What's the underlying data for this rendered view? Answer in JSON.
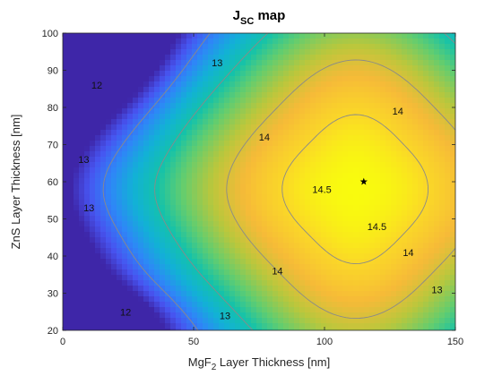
{
  "chart_data": {
    "type": "heatmap",
    "title": {
      "main": "J",
      "sub": "SC",
      "rest": " map"
    },
    "xlabel": {
      "pre": "MgF",
      "sub": "2",
      "post": " Layer Thickness [nm]"
    },
    "ylabel": "ZnS Layer Thickness [nm]",
    "xlim": [
      0,
      150
    ],
    "ylim": [
      20,
      100
    ],
    "x_ticks": [
      0,
      50,
      100,
      150
    ],
    "y_ticks": [
      20,
      30,
      40,
      50,
      60,
      70,
      80,
      90,
      100
    ],
    "grid": false,
    "colormap": "parula",
    "z_range": [
      11.2,
      14.75
    ],
    "contour_levels": [
      12,
      13,
      14,
      14.5
    ],
    "contour_line_color": "#8a8a8a",
    "optimum": {
      "x": 115,
      "y": 60,
      "marker": "star"
    },
    "contour_labels": [
      {
        "text": "12",
        "x": 13,
        "y": 86
      },
      {
        "text": "12",
        "x": 24,
        "y": 25
      },
      {
        "text": "13",
        "x": 59,
        "y": 92
      },
      {
        "text": "13",
        "x": 8,
        "y": 66
      },
      {
        "text": "13",
        "x": 10,
        "y": 53
      },
      {
        "text": "13",
        "x": 62,
        "y": 24
      },
      {
        "text": "13",
        "x": 143,
        "y": 31
      },
      {
        "text": "14",
        "x": 77,
        "y": 72
      },
      {
        "text": "14",
        "x": 128,
        "y": 79
      },
      {
        "text": "14",
        "x": 82,
        "y": 36
      },
      {
        "text": "14",
        "x": 132,
        "y": 41
      },
      {
        "text": "14.5",
        "x": 99,
        "y": 58
      },
      {
        "text": "14.5",
        "x": 120,
        "y": 48
      }
    ]
  }
}
